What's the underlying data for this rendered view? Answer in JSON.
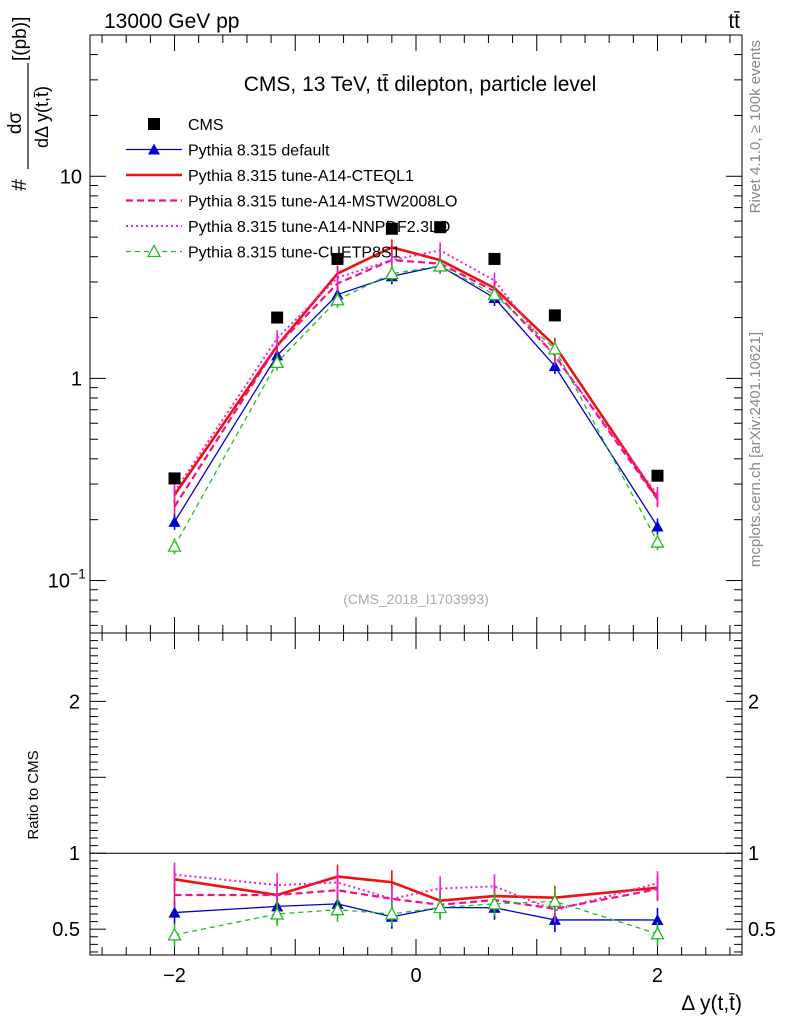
{
  "header": {
    "left": "13000 GeV pp",
    "right": "tt̄"
  },
  "side_labels": {
    "rivet": "Rivet 4.1.0, ≥ 100k events",
    "mcplots": "mcplots.cern.ch [arXiv:2401.10621]"
  },
  "chart_data": {
    "type": "line",
    "title": "CMS, 13 TeV, tt̄ dilepton, particle level",
    "watermark": "(CMS_2018_I1703993)",
    "xlabel": "Δ y(t,t̄)",
    "ylabel_num": "dσ",
    "ylabel_den": "dΔ y(t,t̄)",
    "ylabel_prefix": "#",
    "ylabel_units": "[(pb)]",
    "ratio_ylabel": "Ratio to CMS",
    "yscale": "log",
    "xlim": [
      -2.7,
      2.7
    ],
    "ylim": [
      0.055,
      50
    ],
    "ratio_ylim": [
      0.33,
      2.45
    ],
    "x_ticks": [
      {
        "v": -2,
        "label": "−2"
      },
      {
        "v": 0,
        "label": "0"
      },
      {
        "v": 2,
        "label": "2"
      }
    ],
    "y_ticks": [
      {
        "v": 0.1,
        "base": "10",
        "exp": "−1"
      },
      {
        "v": 1,
        "base": "1",
        "exp": ""
      },
      {
        "v": 10,
        "base": "10",
        "exp": ""
      }
    ],
    "ratio_ticks": [
      {
        "v": 0.5,
        "label": "0.5"
      },
      {
        "v": 1,
        "label": "1"
      },
      {
        "v": 2,
        "label": "2"
      }
    ],
    "x": [
      -2.0,
      -1.15,
      -0.65,
      -0.2,
      0.2,
      0.65,
      1.15,
      2.0
    ],
    "series": [
      {
        "name": "CMS",
        "color": "#000000",
        "style": "data",
        "marker": "square",
        "values": [
          0.32,
          2.0,
          3.9,
          5.5,
          5.6,
          3.9,
          2.05,
          0.33
        ]
      },
      {
        "name": "Pythia 8.315 default",
        "color": "#0000cc",
        "style": "solid-thin",
        "marker": "triangle-filled",
        "values": [
          0.195,
          1.3,
          2.6,
          3.2,
          3.6,
          2.5,
          1.15,
          0.185
        ]
      },
      {
        "name": "Pythia 8.315 tune-A14-CTEQL1",
        "color": "#ee1111",
        "style": "solid-thick",
        "marker": "none",
        "values": [
          0.265,
          1.45,
          3.3,
          4.45,
          3.85,
          2.8,
          1.45,
          0.255
        ]
      },
      {
        "name": "Pythia 8.315 tune-A14-MSTW2008LO",
        "color": "#ee1188",
        "style": "dashed",
        "marker": "none",
        "values": [
          0.232,
          1.45,
          2.95,
          3.85,
          3.7,
          2.7,
          1.3,
          0.252
        ]
      },
      {
        "name": "Pythia 8.315 tune-A14-NNPDF2.3LO",
        "color": "#ee22cc",
        "style": "dotted",
        "marker": "none",
        "values": [
          0.275,
          1.58,
          3.15,
          3.85,
          4.3,
          3.05,
          1.28,
          0.265
        ]
      },
      {
        "name": "Pythia 8.315 tune-CUETP8S1",
        "color": "#22bb22",
        "style": "dashed-thin",
        "marker": "triangle-open",
        "values": [
          0.148,
          1.2,
          2.45,
          3.3,
          3.6,
          2.6,
          1.4,
          0.155
        ]
      }
    ]
  }
}
